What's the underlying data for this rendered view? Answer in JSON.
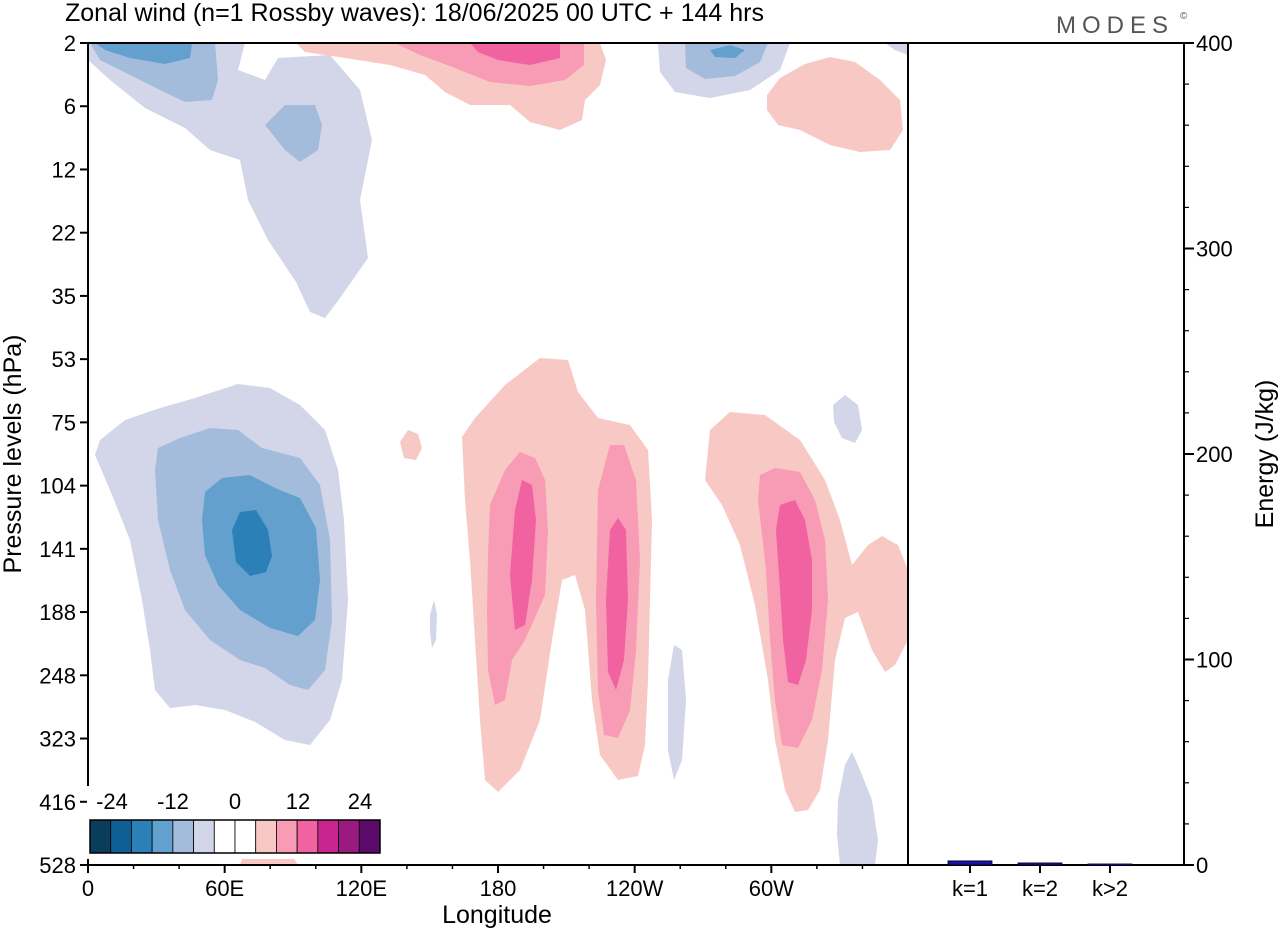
{
  "title": "Zonal wind (n=1 Rossby waves):  18/06/2025  00 UTC  + 144 hrs",
  "logo": "MODES",
  "logo_mark": "©",
  "colors": {
    "neg4": "#0b4f7c",
    "neg3": "#2b80b8",
    "neg2": "#63a0ce",
    "neg1": "#a3bcdc",
    "neg0": "#d3d5e8",
    "pos0": "#f8c8c4",
    "pos1": "#f89bb4",
    "pos2": "#f062a0",
    "pos3": "#e0449a",
    "bar": "#1a10a8"
  },
  "chart_data": [
    {
      "type": "heatmap",
      "title": "Zonal wind (n=1 Rossby waves):  18/06/2025  00 UTC  + 144 hrs",
      "xlabel": "Longitude",
      "ylabel": "Pressure levels (hPa)",
      "x_ticks": [
        "0",
        "60E",
        "120E",
        "180",
        "120W",
        "60W"
      ],
      "x_tick_values": [
        0,
        60,
        120,
        180,
        240,
        300
      ],
      "xlim": [
        0,
        360
      ],
      "y_ticks": [
        "2",
        "6",
        "12",
        "22",
        "35",
        "53",
        "75",
        "104",
        "141",
        "188",
        "248",
        "323",
        "416",
        "528"
      ],
      "y_scale": "level index (top to bottom)",
      "colorbar": {
        "labels": [
          "-24",
          "-12",
          "0",
          "12",
          "24"
        ],
        "colors": [
          "#0a3d5c",
          "#0e5f93",
          "#2b80b8",
          "#63a0ce",
          "#a3bcdc",
          "#d3d5e8",
          "#ffffff",
          "#ffffff",
          "#f8c8c4",
          "#f89bb4",
          "#f062a0",
          "#c92590",
          "#9b1a80",
          "#5c0a6a"
        ]
      },
      "regions": [
        {
          "sign": "negative",
          "level": 2,
          "lon": 70,
          "pressure": 141
        },
        {
          "sign": "negative",
          "level": 1,
          "lon": 4,
          "pressure": 2
        },
        {
          "sign": "negative",
          "level": 1,
          "lon": 282,
          "pressure": 2
        },
        {
          "sign": "positive",
          "level": 2,
          "lon": 190,
          "pressure": 2
        },
        {
          "sign": "positive",
          "level": 2,
          "lon": 232,
          "pressure": 141
        },
        {
          "sign": "positive",
          "level": 2,
          "lon": 309,
          "pressure": 141
        },
        {
          "sign": "positive",
          "level": 1,
          "lon": 188,
          "pressure": 141
        }
      ]
    },
    {
      "type": "bar",
      "categories": [
        "k=1",
        "k=2",
        "k>2"
      ],
      "values": [
        2,
        1,
        0.5
      ],
      "ylabel": "Energy (J/kg)",
      "ylim": [
        0,
        400
      ],
      "y_ticks": [
        "0",
        "100",
        "200",
        "300",
        "400"
      ]
    }
  ]
}
